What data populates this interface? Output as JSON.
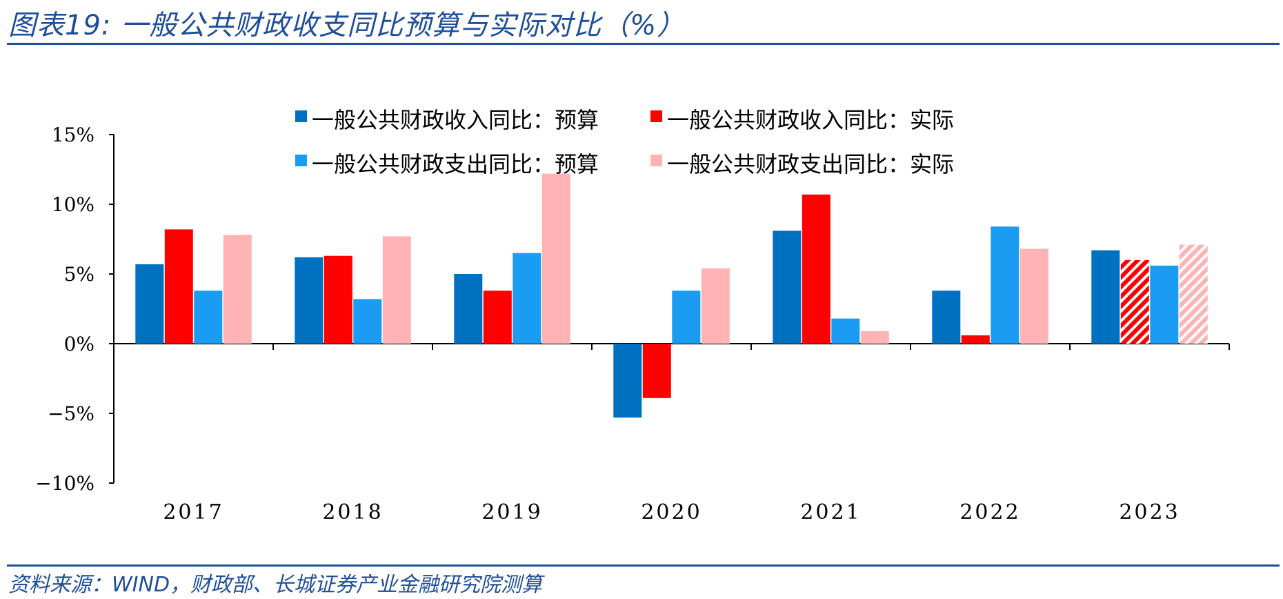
{
  "header": {
    "title": "图表19:  一般公共财政收支同比预算与实际对比（%）"
  },
  "footer": {
    "source": "资料来源：WIND，财政部、长城证券产业金融研究院测算"
  },
  "colors": {
    "income_budget": "#0070c0",
    "income_actual": "#ff0000",
    "expense_budget": "#1a9cf2",
    "expense_actual": "#ffb3b5",
    "frame": "#1f4e9a"
  },
  "chart_data": {
    "type": "bar",
    "title": "一般公共财政收支同比预算与实际对比（%）",
    "categories": [
      "2017",
      "2018",
      "2019",
      "2020",
      "2021",
      "2022",
      "2023"
    ],
    "series": [
      {
        "key": "income_budget",
        "name": "一般公共财政收入同比：预算",
        "values": [
          5.7,
          6.2,
          5.0,
          -5.3,
          8.1,
          3.8,
          6.7
        ]
      },
      {
        "key": "income_actual",
        "name": "一般公共财政收入同比：实际",
        "values": [
          8.2,
          6.3,
          3.8,
          -3.9,
          10.7,
          0.6,
          6.0
        ]
      },
      {
        "key": "expense_budget",
        "name": "一般公共财政支出同比：预算",
        "values": [
          3.8,
          3.2,
          6.5,
          3.8,
          1.8,
          8.4,
          5.6
        ]
      },
      {
        "key": "expense_actual",
        "name": "一般公共财政支出同比：实际",
        "values": [
          7.8,
          7.7,
          12.2,
          5.4,
          0.9,
          6.8,
          7.1
        ]
      }
    ],
    "hatched_category": "2023",
    "ylim": [
      -10,
      15
    ],
    "yticks": [
      15,
      10,
      5,
      0,
      -5,
      -10
    ],
    "ytick_labels": [
      "15%",
      "10%",
      "5%",
      "0%",
      "−5%",
      "−10%"
    ],
    "xlabel": "",
    "ylabel": "",
    "legend": "top-center",
    "grid": false
  }
}
